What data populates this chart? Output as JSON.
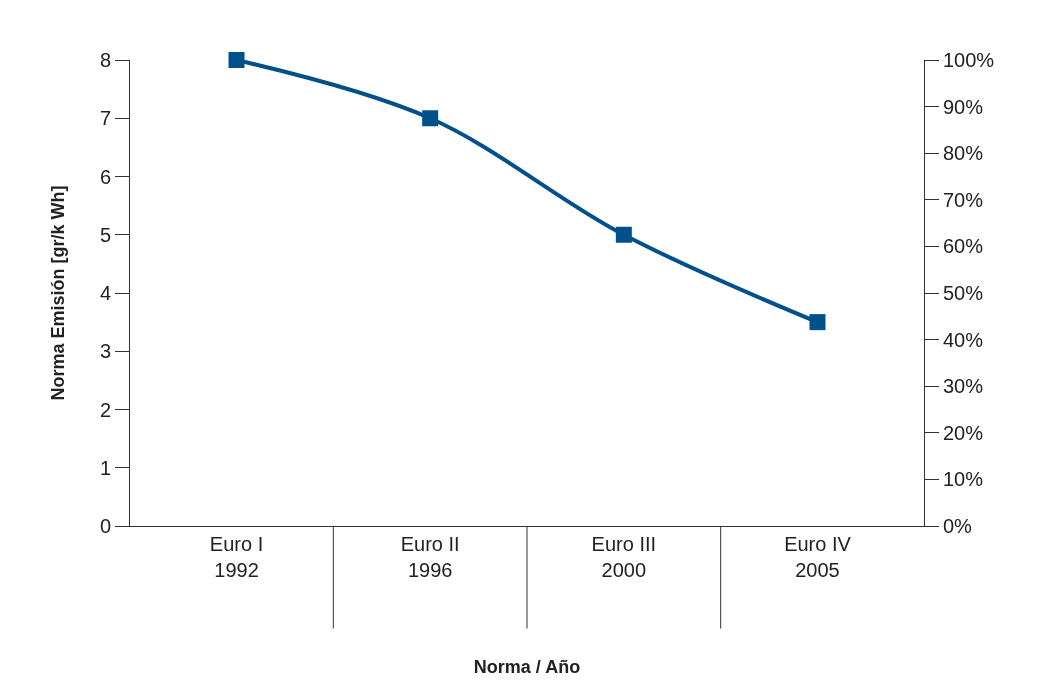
{
  "chart_data": {
    "type": "line",
    "xlabel": "Norma / Año",
    "ylabel": "Norma Emisión [gr/k Wh]",
    "categories": [
      "Euro I\n1992",
      "Euro II\n1996",
      "Euro III\n2000",
      "Euro IV\n2005"
    ],
    "series": [
      {
        "color": "#00508c",
        "values": [
          8,
          7,
          5,
          3.5
        ]
      }
    ],
    "ylim": [
      0,
      8
    ],
    "yticks": [
      0,
      1,
      2,
      3,
      4,
      5,
      6,
      7,
      8
    ],
    "y2lim": [
      0,
      100
    ],
    "y2ticks": [
      {
        "value": 0,
        "label": "0%"
      },
      {
        "value": 10,
        "label": "10%"
      },
      {
        "value": 20,
        "label": "20%"
      },
      {
        "value": 30,
        "label": "30%"
      },
      {
        "value": 40,
        "label": "40%"
      },
      {
        "value": 50,
        "label": "50%"
      },
      {
        "value": 60,
        "label": "60%"
      },
      {
        "value": 70,
        "label": "70%"
      },
      {
        "value": 80,
        "label": "80%"
      },
      {
        "value": 90,
        "label": "90%"
      },
      {
        "value": 100,
        "label": "100%"
      }
    ],
    "legend": false,
    "marker": "square",
    "line_style": "solid"
  }
}
